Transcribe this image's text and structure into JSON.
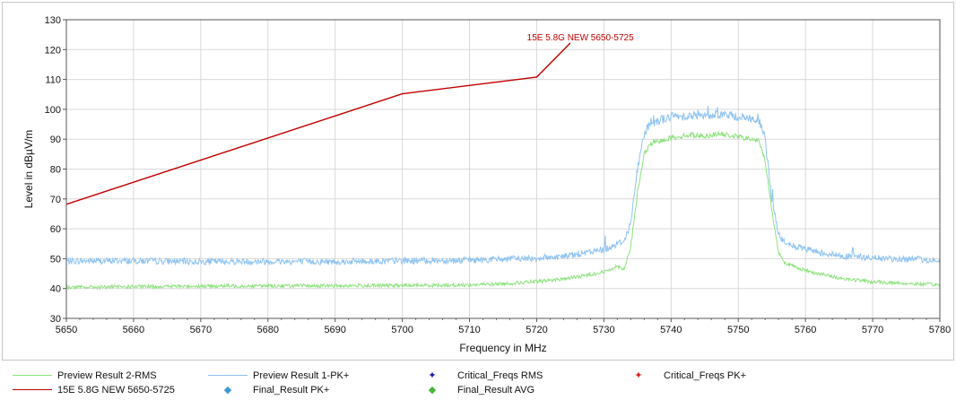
{
  "chart_data": {
    "type": "line",
    "xlabel": "Frequency in MHz",
    "ylabel": "Level in dBµV/m",
    "xlim": [
      5650,
      5780
    ],
    "ylim": [
      30,
      130
    ],
    "x_ticks": [
      5650,
      5660,
      5670,
      5680,
      5690,
      5700,
      5710,
      5720,
      5730,
      5740,
      5750,
      5760,
      5770,
      5780
    ],
    "y_ticks": [
      30,
      40,
      50,
      60,
      70,
      80,
      90,
      100,
      110,
      120,
      130
    ],
    "grid": true,
    "limit_line": {
      "name": "15E 5.8G NEW 5650-5725",
      "label": "15E 5.8G NEW 5650-5725",
      "color": "#c00000",
      "x": [
        5650,
        5700,
        5720,
        5725
      ],
      "y": [
        68.2,
        105.2,
        110.8,
        122.2
      ]
    },
    "series": [
      {
        "name": "Preview Result 1-PK+",
        "color": "#8ec3f2",
        "x": [
          5650,
          5660,
          5670,
          5680,
          5690,
          5700,
          5710,
          5720,
          5725,
          5730,
          5733,
          5734,
          5735,
          5736,
          5737,
          5740,
          5743,
          5745,
          5747,
          5750,
          5753,
          5754,
          5755,
          5756,
          5757,
          5760,
          5765,
          5770,
          5780
        ],
        "y": [
          49.2,
          49.3,
          49.0,
          49.1,
          49.0,
          49.3,
          49.5,
          50.2,
          51.0,
          53.0,
          56.0,
          62.0,
          80.0,
          92.0,
          95.5,
          97.5,
          98.0,
          97.5,
          98.5,
          97.5,
          96.5,
          90.0,
          70.0,
          58.0,
          55.0,
          53.0,
          51.0,
          50.2,
          49.5
        ]
      },
      {
        "name": "Preview Result 2-RMS",
        "color": "#8ee27e",
        "x": [
          5650,
          5660,
          5670,
          5680,
          5690,
          5700,
          5710,
          5715,
          5720,
          5725,
          5730,
          5732,
          5733,
          5734,
          5735,
          5736,
          5737,
          5740,
          5743,
          5745,
          5747,
          5750,
          5753,
          5754,
          5755,
          5756,
          5757,
          5760,
          5765,
          5770,
          5780
        ],
        "y": [
          40.4,
          40.6,
          40.8,
          40.9,
          40.9,
          41.0,
          41.2,
          41.6,
          42.3,
          43.5,
          45.5,
          47.5,
          46.5,
          54.0,
          72.0,
          85.0,
          88.5,
          90.5,
          91.5,
          91.0,
          91.8,
          90.8,
          89.5,
          83.0,
          66.0,
          52.0,
          48.5,
          46.0,
          43.5,
          42.2,
          41.2
        ]
      }
    ],
    "legend": [
      {
        "label": "Preview Result 2-RMS",
        "kind": "line",
        "color": "#8ee27e"
      },
      {
        "label": "Preview Result 1-PK+",
        "kind": "line",
        "color": "#8ec3f2"
      },
      {
        "label": "Critical_Freqs RMS",
        "kind": "star",
        "color": "#1a1aa6"
      },
      {
        "label": "Critical_Freqs PK+",
        "kind": "star",
        "color": "#d62020"
      },
      {
        "label": "15E 5.8G NEW 5650-5725",
        "kind": "line",
        "color": "#c00000"
      },
      {
        "label": "Final_Result PK+",
        "kind": "diamond",
        "color": "#3a9ad9"
      },
      {
        "label": "Final_Result AVG",
        "kind": "diamond",
        "color": "#49b83a"
      }
    ],
    "legend_position": "bottom"
  }
}
